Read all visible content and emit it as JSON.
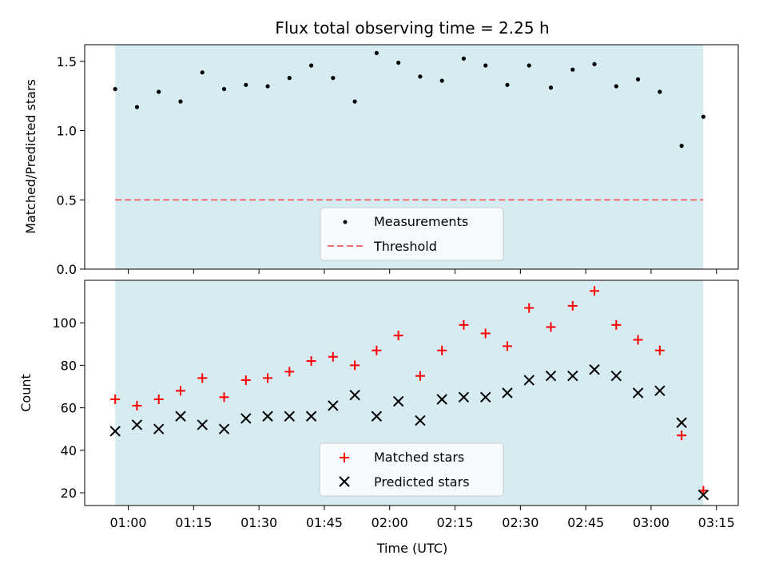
{
  "chart_data": [
    {
      "type": "scatter",
      "panel": "top",
      "title": "Flux total observing time = 2.25 h",
      "ylabel": "Matched/Predicted stars",
      "xlabel": "",
      "ylim": [
        0,
        1.62
      ],
      "yticks": [
        0.0,
        0.5,
        1.0,
        1.5
      ],
      "ytick_labels": [
        "0.0",
        "0.5",
        "1.0",
        "1.5"
      ],
      "x_unit": "minutes after 00:00 UTC",
      "xlim": [
        50,
        200
      ],
      "shaded_span": [
        57,
        192
      ],
      "threshold": 0.5,
      "series": [
        {
          "name": "Measurements",
          "color": "#000000",
          "marker": "dot",
          "x": [
            57,
            62,
            67,
            72,
            77,
            82,
            87,
            92,
            97,
            102,
            107,
            112,
            117,
            122,
            127,
            132,
            137,
            142,
            147,
            152,
            157,
            162,
            167,
            172,
            177,
            182,
            187,
            192
          ],
          "values": [
            1.3,
            1.17,
            1.28,
            1.21,
            1.42,
            1.3,
            1.33,
            1.32,
            1.38,
            1.47,
            1.38,
            1.21,
            1.56,
            1.49,
            1.39,
            1.36,
            1.52,
            1.47,
            1.33,
            1.47,
            1.31,
            1.44,
            1.48,
            1.32,
            1.37,
            1.28,
            0.89,
            1.1
          ]
        }
      ],
      "legend": {
        "placement": "lower center",
        "entries": [
          {
            "label": "Measurements",
            "color": "#000000",
            "marker": "dot"
          },
          {
            "label": "Threshold",
            "color": "#f07070",
            "marker": "dashed-line"
          }
        ]
      }
    },
    {
      "type": "scatter",
      "panel": "bottom",
      "title": "",
      "ylabel": "Count",
      "xlabel": "Time (UTC)",
      "ylim": [
        14,
        120
      ],
      "yticks": [
        20,
        40,
        60,
        80,
        100
      ],
      "ytick_labels": [
        "20",
        "40",
        "60",
        "80",
        "100"
      ],
      "x_unit": "minutes after 00:00 UTC",
      "xlim": [
        50,
        200
      ],
      "xticks": [
        60,
        75,
        90,
        105,
        120,
        135,
        150,
        165,
        180,
        195
      ],
      "xtick_labels": [
        "01:00",
        "01:15",
        "01:30",
        "01:45",
        "02:00",
        "02:15",
        "02:30",
        "02:45",
        "03:00",
        "03:15"
      ],
      "shaded_span": [
        57,
        192
      ],
      "series": [
        {
          "name": "Matched stars",
          "color": "#ff0000",
          "marker": "plus",
          "x": [
            57,
            62,
            67,
            72,
            77,
            82,
            87,
            92,
            97,
            102,
            107,
            112,
            117,
            122,
            127,
            132,
            137,
            142,
            147,
            152,
            157,
            162,
            167,
            172,
            177,
            182,
            187,
            192
          ],
          "values": [
            64,
            61,
            64,
            68,
            74,
            65,
            73,
            74,
            77,
            82,
            84,
            80,
            87,
            94,
            75,
            87,
            99,
            95,
            89,
            107,
            98,
            108,
            115,
            99,
            92,
            87,
            47,
            21
          ]
        },
        {
          "name": "Predicted stars",
          "color": "#000000",
          "marker": "x",
          "x": [
            57,
            62,
            67,
            72,
            77,
            82,
            87,
            92,
            97,
            102,
            107,
            112,
            117,
            122,
            127,
            132,
            137,
            142,
            147,
            152,
            157,
            162,
            167,
            172,
            177,
            182,
            187,
            192
          ],
          "values": [
            49,
            52,
            50,
            56,
            52,
            50,
            55,
            56,
            56,
            56,
            61,
            66,
            56,
            63,
            54,
            64,
            65,
            65,
            67,
            73,
            75,
            75,
            78,
            75,
            67,
            68,
            53,
            19
          ]
        }
      ],
      "legend": {
        "placement": "lower center",
        "entries": [
          {
            "label": "Matched stars",
            "color": "#ff0000",
            "marker": "plus"
          },
          {
            "label": "Predicted stars",
            "color": "#000000",
            "marker": "x"
          }
        ]
      }
    }
  ]
}
